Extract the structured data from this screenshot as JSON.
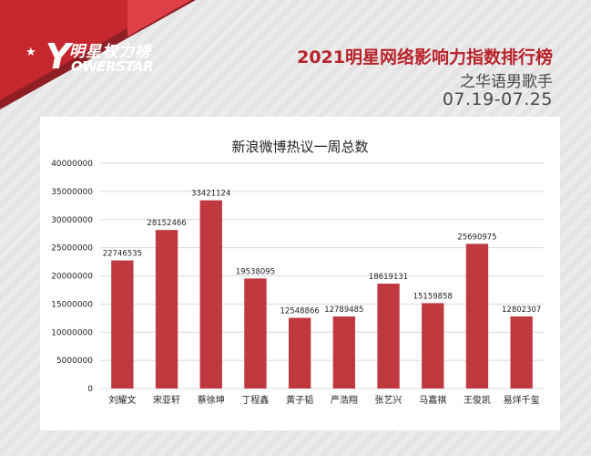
{
  "brand": {
    "logo_cn": "明星权力榜",
    "logo_en": "OWERSTAR",
    "logo_mark": "Y"
  },
  "header": {
    "title": "2021明星网络影响力指数排行榜",
    "subtitle": "之华语男歌手",
    "date_range": "07.19-07.25"
  },
  "colors": {
    "accent": "#c7282f",
    "bar": "#c0393f"
  },
  "chart_data": {
    "type": "bar",
    "title": "新浪微博热议一周总数",
    "xlabel": "",
    "ylabel": "",
    "ylim": [
      0,
      40000000
    ],
    "yticks": [
      0,
      5000000,
      10000000,
      15000000,
      20000000,
      25000000,
      30000000,
      35000000,
      40000000
    ],
    "grid": true,
    "categories": [
      "刘耀文",
      "宋亚轩",
      "蔡徐坤",
      "丁程鑫",
      "黄子韬",
      "严浩翔",
      "张艺兴",
      "马嘉祺",
      "王俊凯",
      "易烊千玺"
    ],
    "values": [
      22746535,
      28152466,
      33421124,
      19538095,
      12548866,
      12789485,
      18619131,
      15159858,
      25690975,
      12802307
    ]
  }
}
